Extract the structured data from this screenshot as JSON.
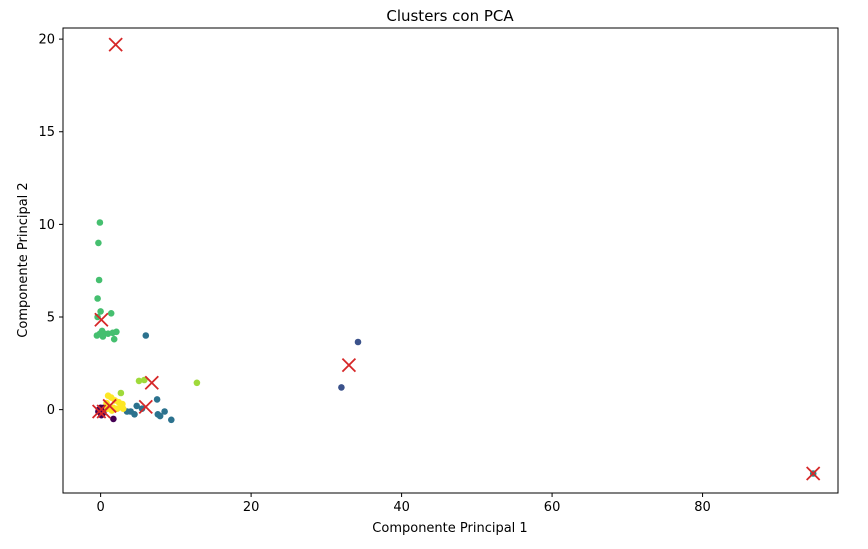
{
  "chart_data": {
    "type": "scatter",
    "title": "Clusters con PCA",
    "xlabel": "Componente Principal 1",
    "ylabel": "Componente Principal 2",
    "xlim": [
      -5,
      98
    ],
    "ylim": [
      -4.5,
      20.6
    ],
    "xticks": [
      0,
      20,
      40,
      60,
      80
    ],
    "yticks": [
      0,
      5,
      10,
      15,
      20
    ],
    "grid": false,
    "clusters": [
      {
        "color": "#440154",
        "points": [
          [
            -0.3,
            -0.1
          ],
          [
            0.0,
            0.1
          ],
          [
            0.3,
            -0.2
          ],
          [
            0.6,
            0.0
          ],
          [
            0.1,
            -0.3
          ],
          [
            -0.2,
            0.0
          ],
          [
            1.7,
            -0.5
          ],
          [
            0.4,
            0.1
          ]
        ]
      },
      {
        "color": "#3b528b",
        "points": [
          [
            32.0,
            1.2
          ],
          [
            34.2,
            3.65
          ]
        ]
      },
      {
        "color": "#2c728e",
        "points": [
          [
            6.0,
            4.0
          ],
          [
            7.5,
            0.55
          ],
          [
            4.0,
            -0.1
          ],
          [
            4.5,
            -0.25
          ],
          [
            4.8,
            0.2
          ],
          [
            5.5,
            0.05
          ],
          [
            7.6,
            -0.25
          ],
          [
            7.9,
            -0.35
          ],
          [
            8.5,
            -0.1
          ],
          [
            9.4,
            -0.55
          ],
          [
            3.5,
            -0.1
          ]
        ]
      },
      {
        "color": "#45bf6f",
        "points": [
          [
            -0.1,
            10.1
          ],
          [
            -0.3,
            9.0
          ],
          [
            -0.2,
            7.0
          ],
          [
            -0.4,
            6.0
          ],
          [
            -0.4,
            5.0
          ],
          [
            0.0,
            5.3
          ],
          [
            1.4,
            5.2
          ],
          [
            -0.5,
            4.0
          ],
          [
            -0.1,
            4.1
          ],
          [
            0.2,
            4.25
          ],
          [
            0.5,
            4.1
          ],
          [
            1.0,
            4.1
          ],
          [
            1.6,
            4.15
          ],
          [
            2.1,
            4.2
          ],
          [
            1.8,
            3.8
          ],
          [
            0.3,
            3.95
          ]
        ]
      },
      {
        "color": "#9fda3a",
        "points": [
          [
            12.8,
            1.45
          ],
          [
            5.1,
            1.55
          ],
          [
            5.8,
            1.6
          ],
          [
            2.7,
            0.9
          ]
        ]
      },
      {
        "color": "#fde725",
        "points": [
          [
            1.0,
            0.75
          ],
          [
            1.4,
            0.65
          ],
          [
            1.9,
            0.5
          ],
          [
            2.4,
            0.4
          ],
          [
            2.9,
            0.3
          ],
          [
            0.8,
            0.35
          ],
          [
            1.2,
            0.15
          ],
          [
            1.7,
            0.1
          ],
          [
            2.2,
            0.05
          ],
          [
            2.7,
            0.15
          ],
          [
            3.0,
            0.05
          ],
          [
            1.5,
            -0.05
          ],
          [
            0.9,
            0.05
          ]
        ]
      },
      {
        "color": "#21918c",
        "points": [
          [
            94.7,
            -3.45
          ]
        ]
      }
    ],
    "centroids": {
      "color": "#d62728",
      "marker": "x",
      "points": [
        [
          2.0,
          19.7
        ],
        [
          0.1,
          4.85
        ],
        [
          6.8,
          1.45
        ],
        [
          33.0,
          2.4
        ],
        [
          94.7,
          -3.45
        ],
        [
          6.0,
          0.15
        ],
        [
          1.2,
          0.2
        ],
        [
          -0.2,
          -0.1
        ],
        [
          0.4,
          -0.1
        ]
      ]
    }
  }
}
